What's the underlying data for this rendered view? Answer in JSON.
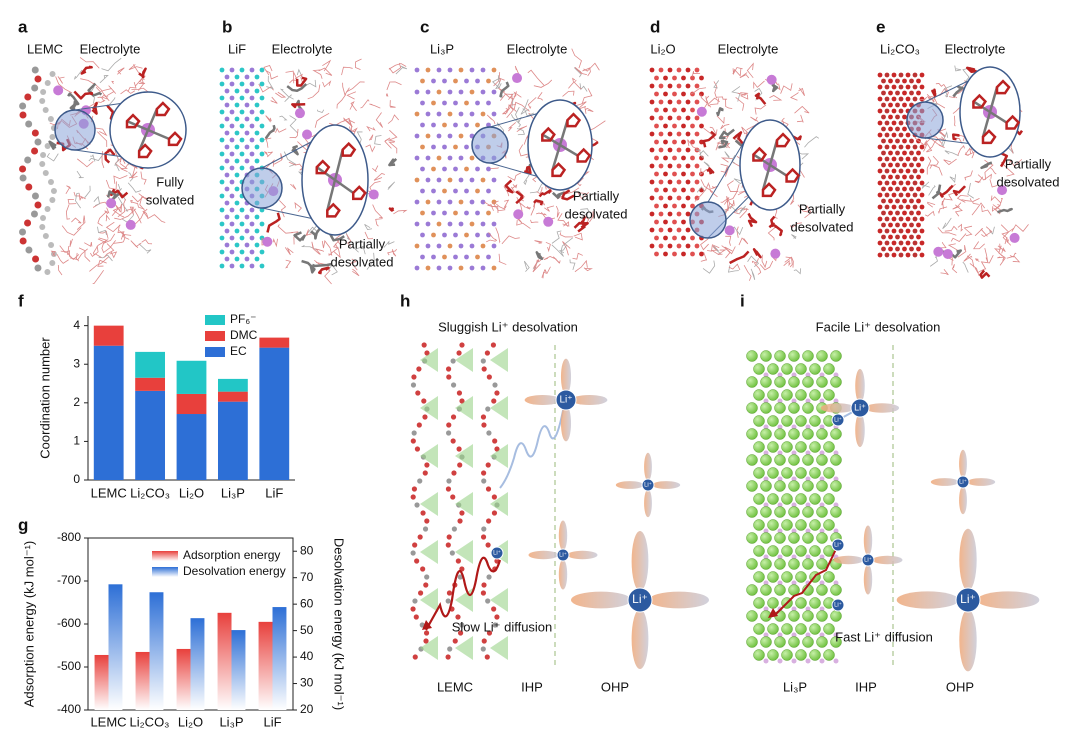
{
  "panels": {
    "a": {
      "label": "a",
      "left": "LEMC",
      "right": "Electrolyte",
      "note": [
        "Fully",
        "solvated"
      ]
    },
    "b": {
      "label": "b",
      "left": "LiF",
      "right": "Electrolyte",
      "note": [
        "Partially",
        "desolvated"
      ]
    },
    "c": {
      "label": "c",
      "left": "Li₃P",
      "right": "Electrolyte",
      "note": [
        "Partially",
        "desolvated"
      ]
    },
    "d": {
      "label": "d",
      "left": "Li₂O",
      "right": "Electrolyte",
      "note": [
        "Partially",
        "desolvated"
      ]
    },
    "e": {
      "label": "e",
      "left": "Li₂CO₃",
      "right": "Electrolyte",
      "note": [
        "Partially",
        "desolvated"
      ]
    },
    "f": "f",
    "g": "g",
    "h": {
      "label": "h",
      "title": "Sluggish Li⁺ desolvation",
      "diffusion": "Slow Li⁺ diffusion",
      "axis": [
        "LEMC",
        "IHP",
        "OHP"
      ]
    },
    "i": {
      "label": "i",
      "title": "Facile Li⁺ desolvation",
      "diffusion": "Fast Li⁺ diffusion",
      "axis": [
        "Li₃P",
        "IHP",
        "OHP"
      ]
    },
    "ion": "Li⁺"
  },
  "chart_data": [
    {
      "type": "stacked_bar",
      "ylabel": "Coordination number",
      "categories": [
        "LEMC",
        "Li₂CO₃",
        "Li₂O",
        "Li₃P",
        "LiF"
      ],
      "series": [
        {
          "name": "EC",
          "color": "#2d6fd6",
          "values": [
            3.48,
            2.31,
            1.71,
            2.03,
            3.43
          ]
        },
        {
          "name": "DMC",
          "color": "#e8403c",
          "values": [
            0.52,
            0.34,
            0.52,
            0.26,
            0.26
          ]
        },
        {
          "name": "PF₆⁻",
          "color": "#22c6c6",
          "values": [
            0,
            0.67,
            0.86,
            0.33,
            0
          ]
        }
      ],
      "ylim": [
        0,
        4.25
      ],
      "yticks": [
        0,
        1,
        2,
        3,
        4
      ]
    },
    {
      "type": "dual_bar",
      "ylabel": "Adsorption energy (kJ mol⁻¹)",
      "y2label": "Desolvation energy (kJ mol⁻¹)",
      "categories": [
        "LEMC",
        "Li₂CO₃",
        "Li₂O",
        "Li₃P",
        "LiF"
      ],
      "series": [
        {
          "name": "Adsorption energy",
          "color": "#e8403c",
          "axis": "y",
          "values": [
            -528,
            -535,
            -542,
            -626,
            -605
          ]
        },
        {
          "name": "Desolvation energy",
          "color": "#2d6fd6",
          "axis": "y2",
          "values": [
            67.5,
            64.5,
            54.7,
            50.2,
            58.9
          ]
        }
      ],
      "ylim": [
        -400,
        -800
      ],
      "yticks": [
        -800,
        -700,
        -600,
        -500,
        -400
      ],
      "y2lim": [
        20,
        85
      ],
      "y2ticks": [
        20,
        30,
        40,
        50,
        60,
        70,
        80
      ]
    }
  ]
}
